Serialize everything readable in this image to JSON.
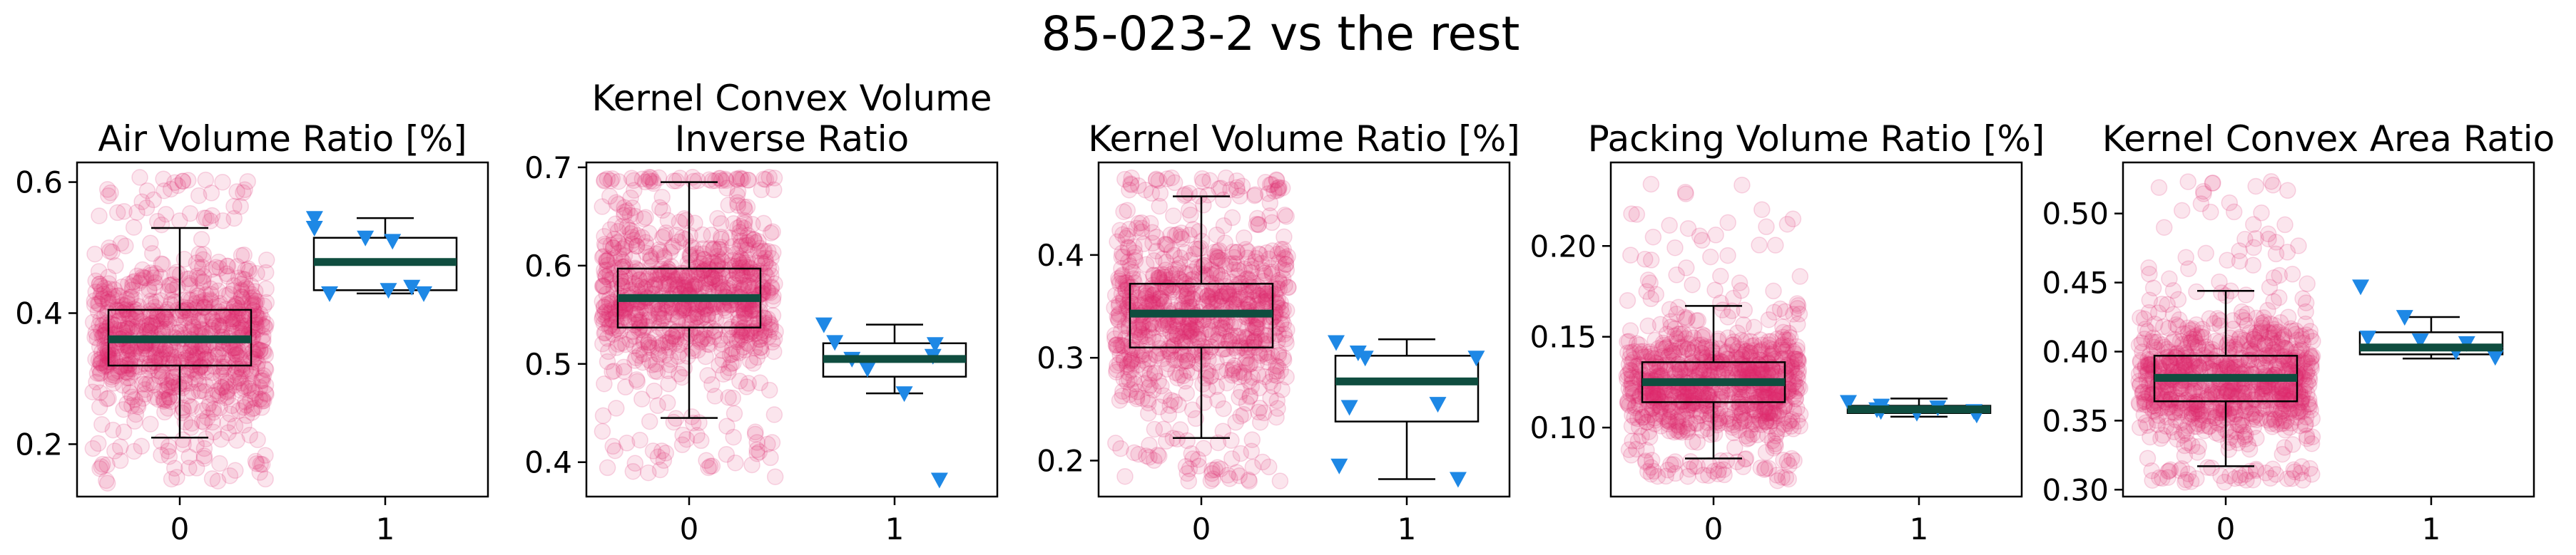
{
  "figure_title": "85-023-2 vs the rest",
  "colors": {
    "rest_points": "#e0286e",
    "selected_points": "#1e88e5",
    "median_line": "#0f4d3f",
    "box_edge": "#000000"
  },
  "chart_data": [
    {
      "type": "box",
      "title": "Air Volume Ratio [%]",
      "title_lines": [
        "Air Volume Ratio [%]"
      ],
      "categories": [
        "0",
        "1"
      ],
      "ylim": [
        0.12,
        0.63
      ],
      "yticks": [
        0.2,
        0.4,
        0.6
      ],
      "yticklabels": [
        "0.2",
        "0.4",
        "0.6"
      ],
      "groups": [
        {
          "category": "0",
          "whisker_low": 0.21,
          "q1": 0.32,
          "median": 0.36,
          "q3": 0.405,
          "whisker_high": 0.53,
          "cloud_low": 0.14,
          "cloud_high": 0.61
        },
        {
          "category": "1",
          "whisker_low": 0.43,
          "q1": 0.435,
          "median": 0.478,
          "q3": 0.515,
          "whisker_high": 0.545,
          "points": [
            0.545,
            0.53,
            0.515,
            0.51,
            0.44,
            0.435,
            0.43,
            0.43
          ]
        }
      ]
    },
    {
      "type": "box",
      "title": "Kernel Convex Volume Inverse Ratio",
      "title_lines": [
        "Kernel Convex Volume",
        "Inverse Ratio"
      ],
      "categories": [
        "0",
        "1"
      ],
      "ylim": [
        0.365,
        0.705
      ],
      "yticks": [
        0.4,
        0.5,
        0.6,
        0.7
      ],
      "yticklabels": [
        "0.4",
        "0.5",
        "0.6",
        "0.7"
      ],
      "groups": [
        {
          "category": "0",
          "whisker_low": 0.445,
          "q1": 0.537,
          "median": 0.567,
          "q3": 0.597,
          "whisker_high": 0.685,
          "cloud_low": 0.385,
          "cloud_high": 0.69
        },
        {
          "category": "1",
          "whisker_low": 0.47,
          "q1": 0.487,
          "median": 0.505,
          "q3": 0.521,
          "whisker_high": 0.54,
          "points": [
            0.54,
            0.522,
            0.52,
            0.508,
            0.505,
            0.495,
            0.47,
            0.382
          ]
        }
      ]
    },
    {
      "type": "box",
      "title": "Kernel Volume Ratio [%]",
      "title_lines": [
        "Kernel Volume Ratio [%]"
      ],
      "categories": [
        "0",
        "1"
      ],
      "ylim": [
        0.165,
        0.49
      ],
      "yticks": [
        0.2,
        0.3,
        0.4
      ],
      "yticklabels": [
        "0.2",
        "0.3",
        "0.4"
      ],
      "groups": [
        {
          "category": "0",
          "whisker_low": 0.222,
          "q1": 0.31,
          "median": 0.343,
          "q3": 0.372,
          "whisker_high": 0.457,
          "cloud_low": 0.18,
          "cloud_high": 0.475
        },
        {
          "category": "1",
          "whisker_low": 0.182,
          "q1": 0.238,
          "median": 0.277,
          "q3": 0.302,
          "whisker_high": 0.318,
          "points": [
            0.315,
            0.305,
            0.3,
            0.3,
            0.255,
            0.252,
            0.195,
            0.182
          ]
        }
      ]
    },
    {
      "type": "box",
      "title": "Packing Volume Ratio [%]",
      "title_lines": [
        "Packing Volume Ratio [%]"
      ],
      "categories": [
        "0",
        "1"
      ],
      "ylim": [
        0.062,
        0.246
      ],
      "yticks": [
        0.1,
        0.15,
        0.2
      ],
      "yticklabels": [
        "0.10",
        "0.15",
        "0.20"
      ],
      "groups": [
        {
          "category": "0",
          "whisker_low": 0.083,
          "q1": 0.114,
          "median": 0.125,
          "q3": 0.136,
          "whisker_high": 0.167,
          "cloud_low": 0.07,
          "cloud_high": 0.235
        },
        {
          "category": "1",
          "whisker_low": 0.106,
          "q1": 0.108,
          "median": 0.11,
          "q3": 0.112,
          "whisker_high": 0.116,
          "points": [
            0.114,
            0.112,
            0.111,
            0.11,
            0.109,
            0.109,
            0.108,
            0.107
          ]
        }
      ]
    },
    {
      "type": "box",
      "title": "Kernel Convex Area Ratio",
      "title_lines": [
        "Kernel Convex Area Ratio"
      ],
      "categories": [
        "0",
        "1"
      ],
      "ylim": [
        0.295,
        0.537
      ],
      "yticks": [
        0.3,
        0.35,
        0.4,
        0.45,
        0.5
      ],
      "yticklabels": [
        "0.30",
        "0.35",
        "0.40",
        "0.45",
        "0.50"
      ],
      "groups": [
        {
          "category": "0",
          "whisker_low": 0.317,
          "q1": 0.364,
          "median": 0.381,
          "q3": 0.397,
          "whisker_high": 0.444,
          "cloud_low": 0.305,
          "cloud_high": 0.525
        },
        {
          "category": "1",
          "whisker_low": 0.395,
          "q1": 0.398,
          "median": 0.403,
          "q3": 0.414,
          "whisker_high": 0.425,
          "points": [
            0.447,
            0.425,
            0.41,
            0.408,
            0.406,
            0.4,
            0.398,
            0.396
          ]
        }
      ]
    }
  ]
}
